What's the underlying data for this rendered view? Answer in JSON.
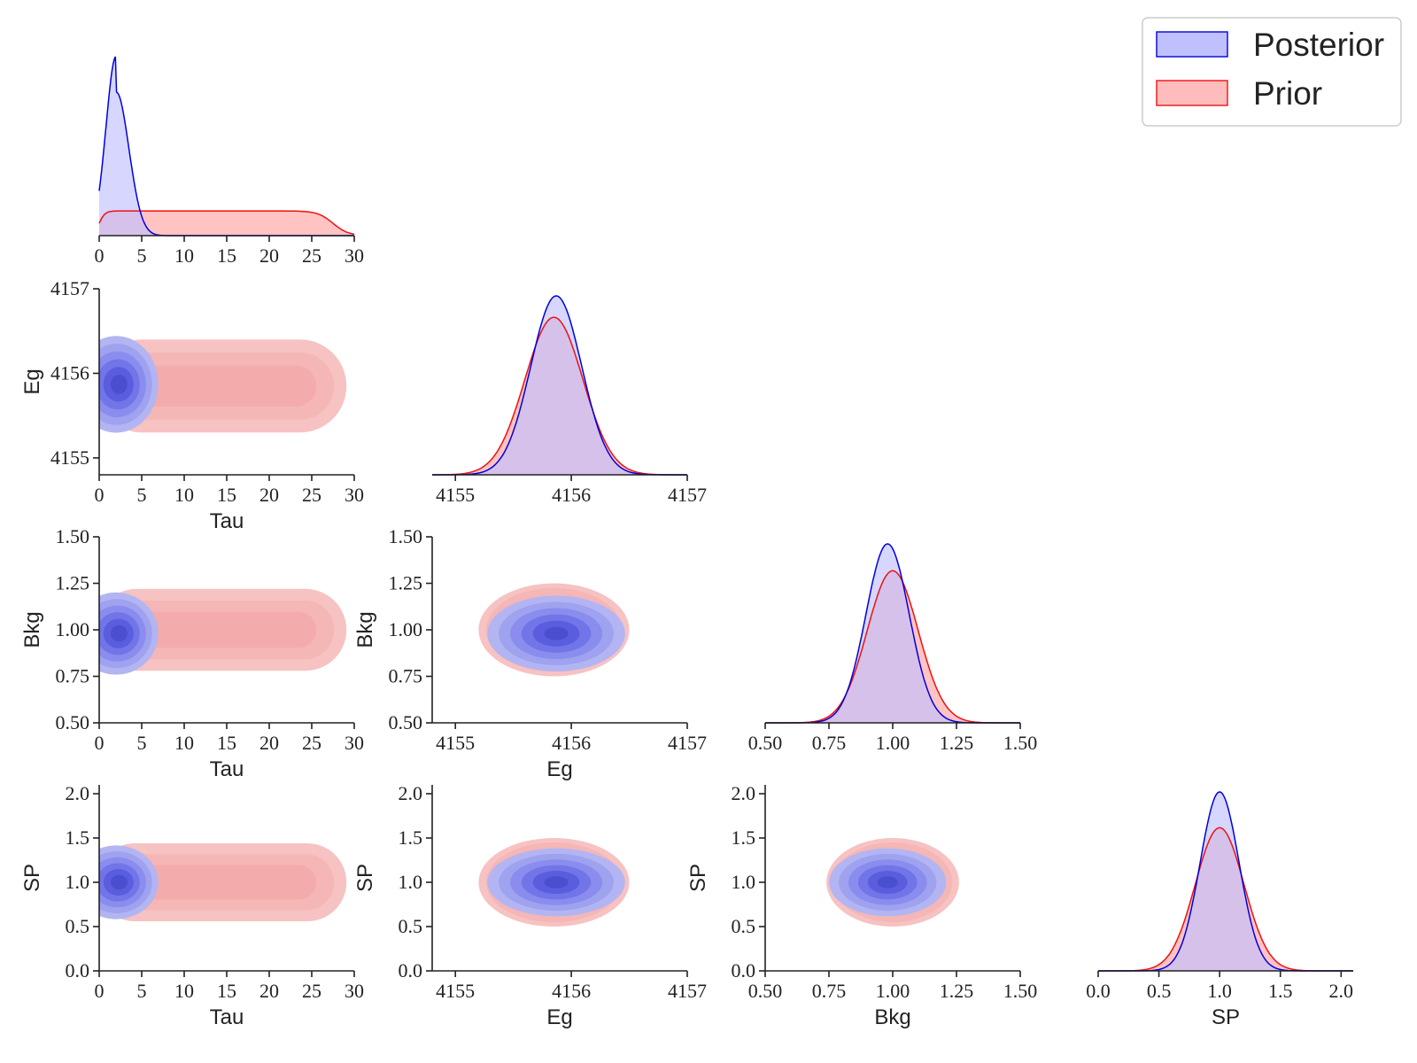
{
  "chart_data": {
    "type": "corner",
    "variables": [
      "Tau",
      "Eg",
      "Bkg",
      "SP"
    ],
    "ranges": {
      "Tau": [
        0,
        30
      ],
      "Eg": [
        4154.8,
        4157
      ],
      "Bkg": [
        0.5,
        1.5
      ],
      "SP": [
        0,
        2.1
      ]
    },
    "ticks": {
      "Tau": [
        "0",
        "5",
        "10",
        "15",
        "20",
        "25",
        "30"
      ],
      "Eg": [
        "4155",
        "4156",
        "4157"
      ],
      "Bkg": [
        "0.50",
        "0.75",
        "1.00",
        "1.25",
        "1.50"
      ],
      "SP": [
        "0.0",
        "0.5",
        "1.0",
        "1.5",
        "2.0"
      ]
    },
    "ytick_labels": {
      "Eg": [
        "4155",
        "4156",
        "4157"
      ],
      "Bkg": [
        "0.50",
        "0.75",
        "1.00",
        "1.25",
        "1.50"
      ],
      "SP": [
        "0.0",
        "0.5",
        "1.0",
        "1.5",
        "2.0"
      ]
    },
    "legend": {
      "placement": "top-right",
      "entries": [
        {
          "label": "Posterior",
          "color": "#0000dd",
          "fill": "#c0c0ff"
        },
        {
          "label": "Prior",
          "color": "#ee1111",
          "fill": "#ffbcbc"
        }
      ]
    },
    "series": [
      {
        "name": "Posterior",
        "distributions": {
          "Tau": {
            "shape": "peak",
            "mode": 2.0,
            "sd_left": 1.2,
            "sd_right": 1.5
          },
          "Eg": {
            "shape": "normal",
            "mean": 4155.87,
            "sd": 0.22
          },
          "Bkg": {
            "shape": "normal",
            "mean": 0.98,
            "sd": 0.085
          },
          "SP": {
            "shape": "normal",
            "mean": 1.0,
            "sd": 0.16
          }
        }
      },
      {
        "name": "Prior",
        "distributions": {
          "Tau": {
            "shape": "uniform",
            "low": 0,
            "high": 27.5
          },
          "Eg": {
            "shape": "normal",
            "mean": 4155.85,
            "sd": 0.25
          },
          "Bkg": {
            "shape": "normal",
            "mean": 1.0,
            "sd": 0.1
          },
          "SP": {
            "shape": "normal",
            "mean": 1.0,
            "sd": 0.2
          }
        }
      }
    ]
  },
  "colors": {
    "posterior_line": "#0000dd",
    "posterior_fill": "#c0c0ff",
    "prior_line": "#ee1111",
    "prior_fill": "#ffbcbc",
    "posterior_contours": [
      "#b3b5f2",
      "#9fa2ef",
      "#8a8ded",
      "#7275e8",
      "#5a5dde",
      "#4a4fd0"
    ],
    "prior_contours": [
      "#f7c2c2",
      "#f5b6b6",
      "#f3abab"
    ]
  }
}
